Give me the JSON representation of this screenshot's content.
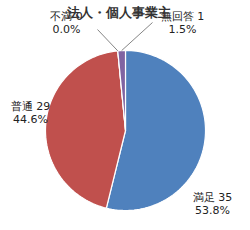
{
  "chart_data": {
    "type": "pie",
    "title": "法人・個人事業主",
    "categories": [
      "満足",
      "普通",
      "不満",
      "無回答"
    ],
    "values": [
      35,
      29,
      0,
      1
    ],
    "percent_labels": [
      "53.8%",
      "44.6%",
      "0.0%",
      "1.5%"
    ],
    "colors": [
      "#4f81bd",
      "#c0504d",
      "#9bbb59",
      "#8064a2"
    ],
    "data_labels": true
  }
}
